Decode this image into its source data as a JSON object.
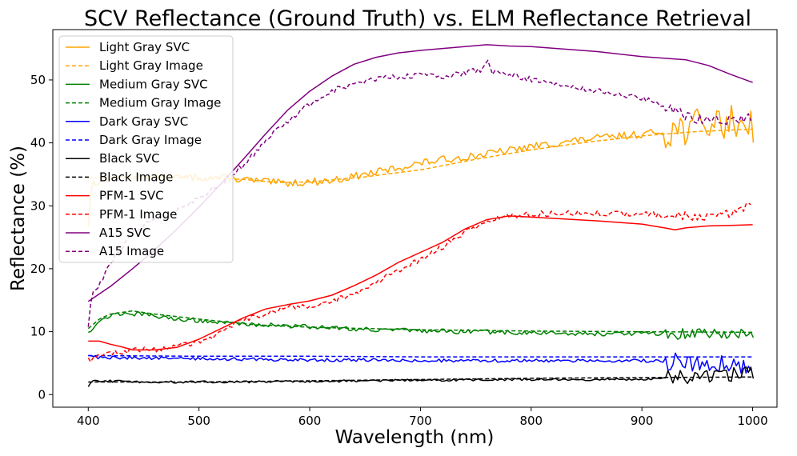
{
  "chart_data": {
    "type": "line",
    "title": "SCV Reflectance (Ground Truth) vs. ELM Reflectance Retrieval",
    "xlabel": "Wavelength (nm)",
    "ylabel": "Reflectance (%)",
    "xlim": [
      368,
      1022
    ],
    "ylim": [
      -2,
      58
    ],
    "xticks": [
      400,
      500,
      600,
      700,
      800,
      900,
      1000
    ],
    "yticks": [
      0,
      10,
      20,
      30,
      40,
      50
    ],
    "grid": false,
    "legend_position": "top-left",
    "series": [
      {
        "name": "Light Gray SVC",
        "color": "#FFA500",
        "style": "solid",
        "noise": 0.6,
        "noise_tail": 2.8,
        "x": [
          400,
          403,
          410,
          420,
          440,
          460,
          480,
          500,
          520,
          540,
          560,
          575,
          600,
          620,
          650,
          680,
          700,
          720,
          750,
          780,
          800,
          850,
          900,
          920,
          940,
          960,
          980,
          1000,
          1002
        ],
        "y": [
          27,
          33.5,
          34,
          34.3,
          34.6,
          34.6,
          34.5,
          34.5,
          34.5,
          34.2,
          33.8,
          33.6,
          33.8,
          34,
          35,
          36,
          36.8,
          37.3,
          38,
          38.8,
          39.4,
          40.6,
          41.4,
          41.8,
          42.4,
          43,
          43.3,
          43.5,
          41.2
        ]
      },
      {
        "name": "Light Gray Image",
        "color": "#FFA500",
        "style": "dashed",
        "noise": 0,
        "noise_tail": 0,
        "x": [
          400,
          430,
          460,
          500,
          540,
          570,
          600,
          650,
          700,
          750,
          800,
          850,
          900,
          950,
          1000
        ],
        "y": [
          34.4,
          34.7,
          34.6,
          34.4,
          34.2,
          33.7,
          33.8,
          34.6,
          35.7,
          37.4,
          38.9,
          40.1,
          41.1,
          41.8,
          42.2
        ]
      },
      {
        "name": "Medium Gray SVC",
        "color": "#008000",
        "style": "solid",
        "noise": 0.35,
        "noise_tail": 0.9,
        "x": [
          400,
          410,
          420,
          435,
          450,
          470,
          500,
          530,
          560,
          600,
          650,
          700,
          750,
          800,
          850,
          900,
          940,
          960,
          980,
          1000,
          1002
        ],
        "y": [
          10,
          11.6,
          12.6,
          13,
          12.7,
          12.2,
          11.8,
          11.3,
          11.1,
          10.8,
          10.4,
          10.1,
          10,
          9.8,
          9.7,
          9.7,
          9.6,
          9.7,
          9.8,
          10,
          9.2
        ]
      },
      {
        "name": "Medium Gray Image",
        "color": "#008000",
        "style": "dashed",
        "noise": 0,
        "noise_tail": 0,
        "x": [
          400,
          410,
          420,
          440,
          460,
          500,
          550,
          600,
          700,
          800,
          900,
          1000
        ],
        "y": [
          10.5,
          12,
          12.8,
          13.3,
          12.8,
          12,
          11.1,
          10.7,
          10.3,
          10.1,
          10,
          9.9
        ]
      },
      {
        "name": "Dark Gray SVC",
        "color": "#0000FF",
        "style": "solid",
        "noise": 0.25,
        "noise_tail": 1.5,
        "x": [
          400,
          410,
          430,
          460,
          500,
          550,
          600,
          650,
          700,
          750,
          800,
          850,
          900,
          950,
          1000
        ],
        "y": [
          6.2,
          5.9,
          5.9,
          5.8,
          5.7,
          5.6,
          5.5,
          5.5,
          5.4,
          5.4,
          5.4,
          5.4,
          5.4,
          5,
          4.8
        ]
      },
      {
        "name": "Dark Gray Image",
        "color": "#0000FF",
        "style": "dashed",
        "noise": 0,
        "noise_tail": 0,
        "x": [
          400,
          500,
          600,
          700,
          800,
          900,
          1000
        ],
        "y": [
          6.2,
          6.1,
          6.1,
          6,
          6,
          6,
          6
        ]
      },
      {
        "name": "Black SVC",
        "color": "#000000",
        "style": "solid",
        "noise": 0.18,
        "noise_tail": 1.2,
        "x": [
          400,
          402,
          410,
          450,
          500,
          600,
          700,
          800,
          900,
          950,
          1000,
          1002
        ],
        "y": [
          1.2,
          2,
          2.2,
          2,
          2,
          2.1,
          2.3,
          2.4,
          2.4,
          2.8,
          3.5,
          1.8
        ]
      },
      {
        "name": "Black Image",
        "color": "#000000",
        "style": "dashed",
        "noise": 0,
        "noise_tail": 0,
        "x": [
          400,
          500,
          600,
          700,
          800,
          900,
          1000
        ],
        "y": [
          2,
          2,
          2.2,
          2.4,
          2.6,
          2.7,
          2.8
        ]
      },
      {
        "name": "PFM-1 SVC",
        "color": "#FF0000",
        "style": "solid",
        "noise": 0,
        "noise_tail": 0,
        "x": [
          400,
          410,
          420,
          430,
          440,
          460,
          480,
          500,
          520,
          540,
          560,
          580,
          600,
          620,
          640,
          660,
          680,
          700,
          720,
          740,
          760,
          780,
          800,
          830,
          860,
          900,
          920,
          930,
          940,
          960,
          980,
          1000
        ],
        "y": [
          8.5,
          8.5,
          8.0,
          7.6,
          7.1,
          7.1,
          7.5,
          8.8,
          10.5,
          12.2,
          13.6,
          14.3,
          14.9,
          15.8,
          17.3,
          19.0,
          21.0,
          22.6,
          24.2,
          26.3,
          27.8,
          28.4,
          28.2,
          27.9,
          27.6,
          27.1,
          26.5,
          26.2,
          26.5,
          26.8,
          26.9,
          27.0
        ]
      },
      {
        "name": "PFM-1 Image",
        "color": "#FF0000",
        "style": "dashed",
        "noise": 0.45,
        "noise_tail": 0.7,
        "x": [
          400,
          410,
          420,
          440,
          460,
          480,
          500,
          520,
          540,
          560,
          580,
          600,
          620,
          640,
          660,
          680,
          700,
          720,
          740,
          760,
          770,
          780,
          800,
          850,
          900,
          950,
          980,
          1000
        ],
        "y": [
          5.5,
          6.2,
          6.6,
          7,
          7.2,
          7.6,
          8.5,
          9.8,
          11.8,
          13,
          13.8,
          14.1,
          14.8,
          16,
          17.8,
          19.7,
          21.5,
          23.5,
          25.8,
          27.2,
          28.2,
          28.4,
          28.7,
          28.9,
          28.7,
          28.3,
          28.9,
          30.4
        ]
      },
      {
        "name": "A15 SVC",
        "color": "#800080",
        "style": "solid",
        "noise": 0,
        "noise_tail": 0,
        "x": [
          400,
          420,
          440,
          460,
          480,
          500,
          520,
          540,
          560,
          580,
          600,
          620,
          640,
          660,
          680,
          700,
          720,
          740,
          760,
          780,
          800,
          830,
          860,
          900,
          940,
          960,
          980,
          1000
        ],
        "y": [
          14.8,
          17.2,
          20.0,
          23.0,
          26.3,
          29.8,
          33.5,
          37.4,
          41.4,
          45.2,
          48.2,
          50.6,
          52.5,
          53.6,
          54.3,
          54.7,
          55.0,
          55.3,
          55.6,
          55.4,
          55.3,
          54.9,
          54.5,
          53.7,
          53.2,
          52.3,
          50.9,
          49.6
        ]
      },
      {
        "name": "A15 Image",
        "color": "#800080",
        "style": "dashed",
        "noise": 0.45,
        "noise_tail": 0.8,
        "x": [
          400,
          403,
          410,
          420,
          440,
          460,
          480,
          500,
          520,
          540,
          560,
          580,
          600,
          620,
          640,
          660,
          680,
          700,
          720,
          740,
          755,
          760,
          765,
          780,
          800,
          850,
          900,
          920,
          940,
          960,
          980,
          1000
        ],
        "y": [
          11.2,
          15.5,
          17.5,
          20.8,
          25.7,
          27.8,
          29.4,
          31.2,
          33.6,
          36.4,
          40.3,
          43.4,
          46.2,
          48.2,
          49.4,
          50.1,
          50.5,
          50.7,
          50.6,
          51.2,
          51.6,
          53.0,
          51.2,
          50.8,
          50.1,
          48.5,
          47.2,
          45.8,
          44.3,
          43.5,
          43.4,
          44.2
        ]
      }
    ]
  }
}
